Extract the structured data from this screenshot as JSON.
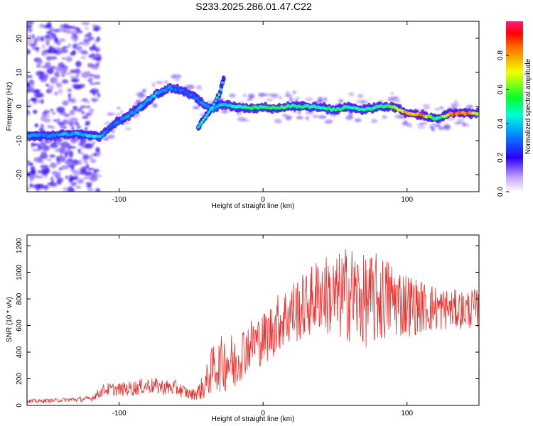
{
  "title": "S233.2025.286.01.47.C22",
  "colors": {
    "snr_line": "#e8302c",
    "axis": "#000000",
    "ridge_low": "#5a00ff",
    "ridge_high": "#ff2a2a"
  },
  "chart_data": [
    {
      "type": "heatmap",
      "title": "S233.2025.286.01.47.C22",
      "xlabel": "Height of straight line (km)",
      "ylabel": "Frequency (Hz)",
      "xlim": [
        -164,
        150
      ],
      "ylim": [
        -25,
        25
      ],
      "xticks": [
        -100,
        0,
        100
      ],
      "yticks": [
        -20,
        -10,
        0,
        10,
        20
      ],
      "colorbar": {
        "label": "Normalized spectral amplitude",
        "range": [
          0,
          1
        ],
        "ticks": [
          "0.0",
          "0.2",
          "0.4",
          "0.6",
          "0.8"
        ]
      },
      "ridge": {
        "x": [
          -164,
          -150,
          -140,
          -130,
          -120,
          -113,
          -105,
          -95,
          -85,
          -75,
          -65,
          -55,
          -48,
          -42,
          -35,
          -30,
          -25,
          -20,
          -10,
          0,
          10,
          20,
          30,
          40,
          50,
          60,
          70,
          80,
          90,
          100,
          110,
          115,
          120,
          125,
          130,
          140,
          150
        ],
        "freq_hz": [
          -8.5,
          -8.5,
          -8.3,
          -8,
          -8.5,
          -9,
          -5.5,
          -3,
          0,
          3.5,
          5.5,
          4.5,
          3,
          1,
          -1,
          0.5,
          0.5,
          0,
          -0.5,
          -0.2,
          -0.5,
          0.2,
          0,
          -0.3,
          -1,
          0,
          -1,
          0,
          0,
          -2,
          -2.5,
          -3,
          -3.5,
          -3,
          -2,
          -2,
          -2
        ],
        "amplitude": [
          0.35,
          0.35,
          0.4,
          0.4,
          0.45,
          0.4,
          0.3,
          0.35,
          0.4,
          0.4,
          0.35,
          0.3,
          0.3,
          0.35,
          0.35,
          0.4,
          0.45,
          0.5,
          0.55,
          0.55,
          0.6,
          0.55,
          0.55,
          0.5,
          0.55,
          0.5,
          0.5,
          0.55,
          0.6,
          0.85,
          0.9,
          0.7,
          0.55,
          0.6,
          0.85,
          0.9,
          0.7
        ]
      },
      "branch": {
        "x": [
          -45,
          -40,
          -35,
          -30,
          -27
        ],
        "freq_hz": [
          -6,
          -3,
          0,
          4,
          9
        ]
      }
    },
    {
      "type": "line",
      "xlabel": "Height of straight line (km)",
      "ylabel": "SNR (10 * v/v)",
      "xlim": [
        -164,
        150
      ],
      "ylim": [
        0,
        1280
      ],
      "xticks": [
        -100,
        0,
        100
      ],
      "yticks": [
        0,
        200,
        400,
        600,
        800,
        1000,
        1200
      ],
      "series": [
        {
          "name": "SNR",
          "x": [
            -164,
            -150,
            -140,
            -130,
            -120,
            -110,
            -100,
            -90,
            -80,
            -70,
            -60,
            -50,
            -45,
            -40,
            -35,
            -30,
            -25,
            -20,
            -15,
            -10,
            -5,
            0,
            5,
            10,
            20,
            30,
            40,
            50,
            60,
            70,
            80,
            90,
            100,
            110,
            120,
            130,
            140,
            150
          ],
          "values": [
            30,
            35,
            40,
            45,
            50,
            120,
            120,
            130,
            150,
            140,
            130,
            80,
            100,
            160,
            280,
            300,
            350,
            300,
            400,
            450,
            480,
            500,
            550,
            620,
            700,
            750,
            850,
            800,
            850,
            780,
            800,
            800,
            760,
            740,
            730,
            720,
            720,
            730
          ],
          "spread": [
            15,
            15,
            15,
            20,
            20,
            50,
            50,
            60,
            60,
            60,
            60,
            40,
            60,
            120,
            180,
            200,
            250,
            220,
            200,
            200,
            200,
            200,
            220,
            220,
            250,
            250,
            300,
            320,
            380,
            350,
            350,
            300,
            250,
            200,
            180,
            150,
            150,
            150
          ]
        }
      ]
    }
  ]
}
